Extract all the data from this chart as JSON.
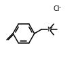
{
  "bg_color": "#ffffff",
  "line_color": "#000000",
  "line_width": 1.1,
  "fig_width": 1.09,
  "fig_height": 0.98,
  "dpi": 100,
  "cl_label": "Cl",
  "cl_sup": "-",
  "n_label": "N",
  "n_sup": "+"
}
